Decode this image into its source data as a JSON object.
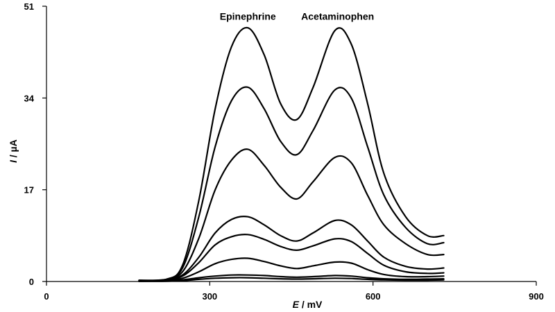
{
  "chart_data": {
    "type": "line",
    "xlabel_italic": "E",
    "xlabel_rest": " / mV",
    "ylabel_italic": "I",
    "ylabel_rest": " / µA",
    "xlim": [
      0,
      900
    ],
    "ylim": [
      0,
      51
    ],
    "xticks": [
      0,
      300,
      600,
      900
    ],
    "yticks": [
      0,
      17,
      34,
      51
    ],
    "grid": false,
    "annotations": [
      {
        "text": "Epinephrine",
        "x": 370,
        "y": 48.5
      },
      {
        "text": "Acetaminophen",
        "x": 535,
        "y": 48.5
      }
    ],
    "series_color": "#000000",
    "series": [
      {
        "x": [
          170,
          220,
          250,
          280,
          310,
          340,
          370,
          400,
          430,
          460,
          490,
          530,
          560,
          590,
          620,
          660,
          700,
          730
        ],
        "y": [
          0.2,
          0.4,
          3.0,
          15.0,
          32.0,
          43.5,
          47.0,
          42.0,
          33.0,
          30.0,
          36.0,
          46.5,
          44.0,
          33.0,
          20.0,
          12.0,
          8.5,
          8.5
        ]
      },
      {
        "x": [
          170,
          220,
          250,
          280,
          310,
          340,
          370,
          400,
          430,
          460,
          490,
          530,
          560,
          590,
          620,
          660,
          700,
          730
        ],
        "y": [
          0.2,
          0.4,
          2.5,
          12.0,
          25.0,
          33.5,
          36.0,
          32.0,
          26.0,
          23.5,
          28.0,
          35.5,
          34.0,
          25.0,
          16.0,
          10.0,
          7.0,
          7.2
        ]
      },
      {
        "x": [
          170,
          220,
          250,
          280,
          310,
          340,
          370,
          400,
          430,
          460,
          490,
          530,
          560,
          590,
          620,
          660,
          700,
          730
        ],
        "y": [
          0.2,
          0.4,
          1.8,
          8.0,
          17.0,
          22.5,
          24.5,
          21.5,
          17.5,
          15.3,
          18.5,
          23.0,
          22.0,
          16.0,
          10.5,
          7.0,
          5.0,
          5.0
        ]
      },
      {
        "x": [
          170,
          220,
          250,
          280,
          310,
          340,
          370,
          400,
          430,
          460,
          490,
          530,
          560,
          590,
          620,
          660,
          700,
          730
        ],
        "y": [
          0.1,
          0.3,
          1.2,
          4.5,
          9.0,
          11.5,
          12.0,
          10.5,
          8.5,
          7.5,
          9.0,
          11.3,
          10.5,
          7.5,
          4.5,
          2.8,
          2.3,
          2.5
        ]
      },
      {
        "x": [
          170,
          220,
          250,
          280,
          310,
          340,
          370,
          400,
          430,
          460,
          490,
          530,
          560,
          590,
          620,
          660,
          700,
          730
        ],
        "y": [
          0.1,
          0.3,
          1.0,
          3.5,
          6.8,
          8.3,
          8.7,
          7.8,
          6.5,
          5.8,
          6.6,
          7.9,
          7.4,
          5.2,
          3.0,
          1.8,
          1.5,
          1.6
        ]
      },
      {
        "x": [
          170,
          220,
          250,
          280,
          310,
          340,
          370,
          400,
          430,
          460,
          490,
          530,
          560,
          590,
          620,
          660,
          700,
          730
        ],
        "y": [
          0.1,
          0.2,
          0.6,
          1.8,
          3.3,
          4.1,
          4.3,
          3.7,
          2.9,
          2.4,
          2.9,
          3.6,
          3.4,
          2.2,
          1.3,
          0.9,
          0.9,
          1.0
        ]
      },
      {
        "x": [
          170,
          220,
          250,
          280,
          310,
          340,
          370,
          400,
          430,
          460,
          490,
          530,
          560,
          590,
          620,
          660,
          700,
          730
        ],
        "y": [
          0.05,
          0.1,
          0.3,
          0.7,
          1.0,
          1.2,
          1.2,
          1.1,
          0.9,
          0.8,
          0.9,
          1.1,
          1.0,
          0.7,
          0.5,
          0.4,
          0.45,
          0.5
        ]
      },
      {
        "x": [
          170,
          220,
          250,
          280,
          310,
          340,
          370,
          400,
          430,
          460,
          490,
          530,
          560,
          590,
          620,
          660,
          700,
          730
        ],
        "y": [
          0.02,
          0.05,
          0.15,
          0.4,
          0.6,
          0.7,
          0.7,
          0.6,
          0.5,
          0.45,
          0.5,
          0.6,
          0.55,
          0.4,
          0.3,
          0.25,
          0.25,
          0.3
        ]
      }
    ]
  }
}
